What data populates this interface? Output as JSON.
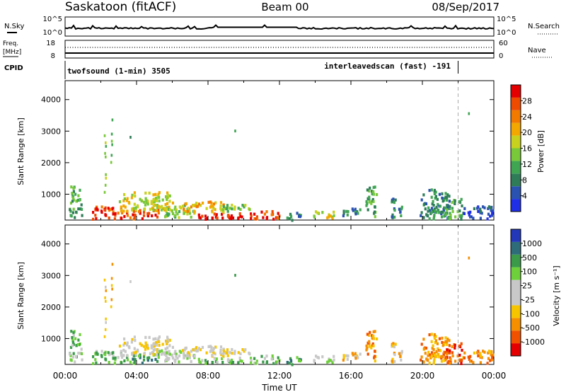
{
  "header": {
    "station": "Saskatoon (fitACF)",
    "beam": "Beam 00",
    "date": "08/Sep/2017"
  },
  "strip_panels": {
    "noise": {
      "left_label": "N.Sky",
      "right_label": "N.Search",
      "ticks_left": [
        "10^5",
        "10^0"
      ],
      "ticks_right": [
        "10^5",
        "10^0"
      ]
    },
    "freq": {
      "left_label_1": "Freq.",
      "left_label_2": "[MHz]",
      "right_label": "Nave",
      "ticks_left": [
        "18",
        "8"
      ],
      "ticks_right": [
        "60",
        "0"
      ]
    },
    "cpid": {
      "label": "CPID",
      "modes": [
        {
          "name": "twofsound (1-min) 3505",
          "start_hour": 0.0
        },
        {
          "name": "interleavedscan (fast) -191",
          "start_hour": 22.0
        }
      ]
    }
  },
  "chart_data": [
    {
      "type": "heatmap",
      "name": "power",
      "ylabel": "Slant Range [km]",
      "xlabel": "",
      "ylim": [
        180,
        4600
      ],
      "xlim_hours": [
        0,
        24
      ],
      "yticks": [
        "1000",
        "2000",
        "3000",
        "4000"
      ],
      "colorbar": {
        "label": "Power [dB]",
        "ticks": [
          "4",
          "8",
          "12",
          "16",
          "20",
          "24",
          "28"
        ],
        "colors": [
          "#1f2fe6",
          "#2a52b0",
          "#2e7d58",
          "#3fa553",
          "#78c83a",
          "#c7d11e",
          "#f2a800",
          "#f27a00",
          "#ee4a00",
          "#e40000"
        ]
      },
      "marker_hour": 22.0,
      "regions": [
        {
          "t0": 0.2,
          "t1": 0.9,
          "r0": 300,
          "r1": 1300,
          "level": 3
        },
        {
          "t0": 1.5,
          "t1": 3.3,
          "r0": 250,
          "r1": 650,
          "level": 8
        },
        {
          "t0": 3.3,
          "t1": 5.2,
          "r0": 250,
          "r1": 550,
          "level": 8
        },
        {
          "t0": 3.0,
          "t1": 6.0,
          "r0": 500,
          "r1": 1100,
          "level": 5
        },
        {
          "t0": 5.2,
          "t1": 7.2,
          "r0": 300,
          "r1": 700,
          "level": 4
        },
        {
          "t0": 7.3,
          "t1": 10.5,
          "r0": 250,
          "r1": 450,
          "level": 9
        },
        {
          "t0": 6.5,
          "t1": 9.0,
          "r0": 450,
          "r1": 800,
          "level": 6
        },
        {
          "t0": 8.5,
          "t1": 10.5,
          "r0": 500,
          "r1": 720,
          "level": 4
        },
        {
          "t0": 10.5,
          "t1": 12.1,
          "r0": 250,
          "r1": 500,
          "level": 8
        },
        {
          "t0": 12.3,
          "t1": 13.2,
          "r0": 200,
          "r1": 450,
          "level": 2
        },
        {
          "t0": 13.8,
          "t1": 15.0,
          "r0": 250,
          "r1": 500,
          "level": 5
        },
        {
          "t0": 15.5,
          "t1": 16.5,
          "r0": 300,
          "r1": 600,
          "level": 2
        },
        {
          "t0": 16.8,
          "t1": 17.4,
          "r0": 300,
          "r1": 1300,
          "level": 3
        },
        {
          "t0": 18.2,
          "t1": 18.8,
          "r0": 300,
          "r1": 900,
          "level": 2
        },
        {
          "t0": 19.8,
          "t1": 21.5,
          "r0": 250,
          "r1": 1200,
          "level": 2
        },
        {
          "t0": 21.2,
          "t1": 22.2,
          "r0": 250,
          "r1": 900,
          "level": 3
        },
        {
          "t0": 22.2,
          "t1": 23.9,
          "r0": 250,
          "r1": 650,
          "level": 1
        }
      ],
      "features": [
        {
          "t": 2.2,
          "r0": 1000,
          "r1": 2900,
          "level": 4
        },
        {
          "t": 2.55,
          "r0": 2000,
          "r1": 3400,
          "level": 3
        },
        {
          "t": 3.6,
          "r0": 2750,
          "r1": 2850,
          "level": 2
        },
        {
          "t": 9.5,
          "r0": 2950,
          "r1": 3050,
          "level": 2
        },
        {
          "t": 22.5,
          "r0": 3500,
          "r1": 3600,
          "level": 2
        }
      ]
    },
    {
      "type": "heatmap",
      "name": "velocity",
      "ylabel": "Slant Range [km]",
      "xlabel": "Time UT",
      "ylim": [
        180,
        4600
      ],
      "xlim_hours": [
        0,
        24
      ],
      "xticks": [
        "00:00",
        "04:00",
        "08:00",
        "12:00",
        "16:00",
        "20:00",
        "00:00"
      ],
      "yticks": [
        "1000",
        "2000",
        "3000",
        "4000"
      ],
      "colorbar": {
        "label": "Velocity [m s⁻¹]",
        "ticks": [
          "-1000",
          "-500",
          "-100",
          "-25",
          "25",
          "100",
          "500",
          "1000"
        ],
        "colors": [
          "#e40000",
          "#f25200",
          "#f58f00",
          "#f7c400",
          "#c8c8c8",
          "#c8c8c8",
          "#6ed03a",
          "#3a9a4a",
          "#2e6c7a",
          "#2238b8"
        ]
      },
      "marker_hour": 22.0,
      "regions": [
        {
          "t0": 0.2,
          "t1": 0.9,
          "r0": 300,
          "r1": 1300,
          "level": 6
        },
        {
          "t0": 1.5,
          "t1": 3.3,
          "r0": 250,
          "r1": 650,
          "level": 6
        },
        {
          "t0": 3.3,
          "t1": 5.2,
          "r0": 250,
          "r1": 550,
          "level": 7
        },
        {
          "t0": 3.0,
          "t1": 6.0,
          "r0": 500,
          "r1": 1100,
          "level": 4
        },
        {
          "t0": 5.2,
          "t1": 7.2,
          "r0": 300,
          "r1": 700,
          "level": 5
        },
        {
          "t0": 7.3,
          "t1": 10.5,
          "r0": 250,
          "r1": 450,
          "level": 6
        },
        {
          "t0": 6.5,
          "t1": 9.0,
          "r0": 450,
          "r1": 800,
          "level": 4
        },
        {
          "t0": 8.5,
          "t1": 10.5,
          "r0": 500,
          "r1": 720,
          "level": 4
        },
        {
          "t0": 10.5,
          "t1": 12.1,
          "r0": 250,
          "r1": 500,
          "level": 6
        },
        {
          "t0": 12.3,
          "t1": 13.2,
          "r0": 200,
          "r1": 450,
          "level": 7
        },
        {
          "t0": 13.8,
          "t1": 15.0,
          "r0": 250,
          "r1": 500,
          "level": 5
        },
        {
          "t0": 15.5,
          "t1": 16.5,
          "r0": 300,
          "r1": 600,
          "level": 3
        },
        {
          "t0": 16.8,
          "t1": 17.4,
          "r0": 300,
          "r1": 1300,
          "level": 2
        },
        {
          "t0": 18.2,
          "t1": 18.8,
          "r0": 300,
          "r1": 900,
          "level": 3
        },
        {
          "t0": 19.8,
          "t1": 21.5,
          "r0": 250,
          "r1": 1200,
          "level": 2
        },
        {
          "t0": 21.2,
          "t1": 22.2,
          "r0": 250,
          "r1": 900,
          "level": 1
        },
        {
          "t0": 22.2,
          "t1": 23.9,
          "r0": 250,
          "r1": 650,
          "level": 2
        }
      ],
      "features": [
        {
          "t": 2.2,
          "r0": 1000,
          "r1": 2900,
          "level": 3
        },
        {
          "t": 2.55,
          "r0": 2000,
          "r1": 3400,
          "level": 2
        },
        {
          "t": 3.6,
          "r0": 2750,
          "r1": 2850,
          "level": 4
        },
        {
          "t": 9.5,
          "r0": 2950,
          "r1": 3050,
          "level": 6
        },
        {
          "t": 22.5,
          "r0": 3500,
          "r1": 3600,
          "level": 1
        }
      ]
    }
  ]
}
